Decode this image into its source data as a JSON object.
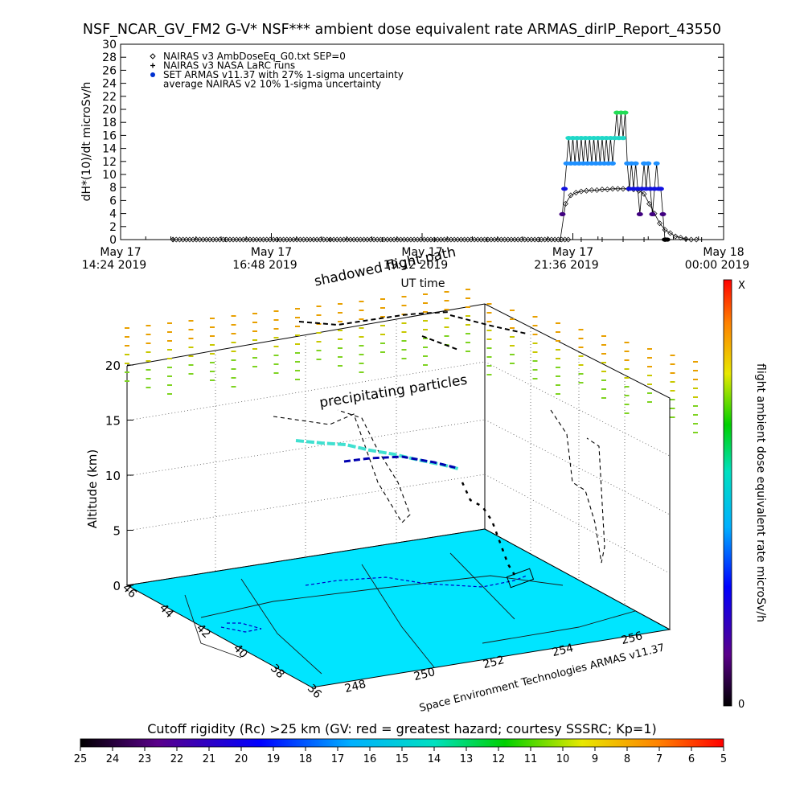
{
  "title": "NSF_NCAR_GV_FM2 G-V* NSF*** ambient dose equivalent rate ARMAS_dirIP_Report_43550",
  "chart_data": [
    {
      "type": "scatter",
      "ylabel": "dH*(10)/dt microSv/h",
      "xlabel": "UT time",
      "ylim": [
        0,
        30
      ],
      "yticks": [
        0,
        2,
        4,
        6,
        8,
        10,
        12,
        14,
        16,
        18,
        20,
        22,
        24,
        26,
        28,
        30
      ],
      "xticks": [
        {
          "line1": "May 17",
          "line2": "14:24 2019",
          "minutes": 0
        },
        {
          "line1": "May 17",
          "line2": "16:48 2019",
          "minutes": 144
        },
        {
          "line1": "May 17",
          "line2": "19:12 2019",
          "minutes": 288
        },
        {
          "line1": "May 17",
          "line2": "21:36 2019",
          "minutes": 432
        },
        {
          "line1": "May 18",
          "line2": "00:00 2019",
          "minutes": 576
        }
      ],
      "xlim_minutes": [
        0,
        576
      ],
      "legend": [
        {
          "label": "NAIRAS v3 AmbDoseEq_G0.txt SEP=0",
          "marker": "diamond"
        },
        {
          "label": "NAIRAS v3 NASA LaRC runs",
          "marker": "plus"
        },
        {
          "label": "SET ARMAS v11.37 with 27% 1-sigma uncertainty",
          "marker": "dot"
        },
        {
          "label": "average NAIRAS v2 10% 1-sigma uncertainty",
          "marker": "none"
        }
      ],
      "series": [
        {
          "name": "NAIRAS v3 AmbDoseEq_G0.txt SEP=0",
          "x_minutes": [
            50,
            60,
            70,
            80,
            90,
            100,
            110,
            120,
            130,
            140,
            150,
            160,
            170,
            180,
            190,
            200,
            210,
            220,
            230,
            240,
            250,
            260,
            270,
            280,
            290,
            300,
            310,
            320,
            330,
            340,
            350,
            360,
            370,
            380,
            390,
            400,
            410,
            415,
            420,
            425,
            430,
            435,
            440,
            445,
            450,
            455,
            460,
            465,
            470,
            475,
            480,
            485,
            490,
            495,
            500,
            505,
            510,
            515,
            520,
            525,
            530,
            535,
            540,
            545,
            550
          ],
          "y": [
            0,
            0,
            0,
            0,
            0,
            0,
            0,
            0,
            0,
            0,
            0,
            0,
            0,
            0,
            0,
            0,
            0,
            0,
            0,
            0,
            0,
            0,
            0,
            0,
            0,
            0,
            0,
            0,
            0,
            0,
            0,
            0,
            0,
            0,
            0,
            0,
            0,
            0,
            0,
            5.5,
            6.8,
            7.2,
            7.4,
            7.5,
            7.6,
            7.6,
            7.7,
            7.7,
            7.8,
            7.8,
            7.8,
            7.8,
            7.7,
            7.5,
            7.0,
            5.5,
            4.0,
            2.5,
            1.5,
            1.0,
            0.5,
            0.3,
            0.1,
            0,
            0
          ]
        },
        {
          "name": "NAIRAS v3 NASA LaRC runs",
          "x_minutes": [
            50,
            100,
            150,
            200,
            250,
            300,
            350,
            400,
            420,
            440,
            460,
            480,
            500,
            520,
            540,
            555
          ],
          "y": [
            0,
            0,
            0,
            0,
            0,
            0,
            0,
            0,
            0,
            0,
            0,
            0,
            0,
            0,
            0,
            0
          ]
        },
        {
          "name": "SET ARMAS v11.37 with 27% 1-sigma uncertainty",
          "x_minutes": [
            422,
            424,
            426,
            428,
            430,
            432,
            434,
            436,
            438,
            440,
            442,
            444,
            446,
            448,
            450,
            452,
            454,
            456,
            458,
            460,
            462,
            464,
            466,
            468,
            470,
            472,
            474,
            476,
            478,
            480,
            482,
            484,
            486,
            488,
            490,
            492,
            494,
            496,
            498,
            500,
            502,
            504,
            506,
            508,
            510,
            512,
            514,
            516,
            518,
            520,
            522
          ],
          "y": [
            3.9,
            7.8,
            11.7,
            15.6,
            11.7,
            15.6,
            11.7,
            15.6,
            11.7,
            15.6,
            11.7,
            15.6,
            11.7,
            15.6,
            11.7,
            15.6,
            11.7,
            15.6,
            11.7,
            15.6,
            11.7,
            15.6,
            11.7,
            15.6,
            11.7,
            15.6,
            19.5,
            15.6,
            19.5,
            15.6,
            19.5,
            11.7,
            7.8,
            11.7,
            7.8,
            11.7,
            7.8,
            3.9,
            7.8,
            11.7,
            7.8,
            11.7,
            7.8,
            3.9,
            7.8,
            11.7,
            7.8,
            7.8,
            3.9,
            0,
            0
          ]
        }
      ]
    },
    {
      "type": "scatter",
      "subtype": "3d-flight-path",
      "ylabel": "Altitude (km)",
      "zticks": [
        0,
        5,
        10,
        15,
        20
      ],
      "lat_ticks": [
        46,
        44,
        42,
        40,
        38,
        36
      ],
      "lon_ticks": [
        248,
        250,
        252,
        254,
        256
      ],
      "annotations": [
        "shadowed flight path",
        "precipitating particles"
      ],
      "credit": "Space Environment Technologies ARMAS v11.37",
      "colorbar": {
        "label": "flight ambient dose equivalent rate microSv/h",
        "top": "X",
        "bottom": "0"
      },
      "colors": {
        "surface": "#00e5ff",
        "path_low": "#0000c8",
        "path_high": "#40e0d0",
        "grid_orange": "#e8a000",
        "grid_green": "#7ed321"
      }
    }
  ],
  "footer_bar": {
    "label": "Cutoff rigidity (Rc) >25 km (GV: red = greatest hazard; courtesy SSSRC; Kp=1)",
    "ticks": [
      "25",
      "24",
      "23",
      "22",
      "21",
      "20",
      "19",
      "18",
      "17",
      "16",
      "15",
      "14",
      "13",
      "12",
      "11",
      "10",
      "9",
      "8",
      "7",
      "6",
      "5"
    ]
  }
}
